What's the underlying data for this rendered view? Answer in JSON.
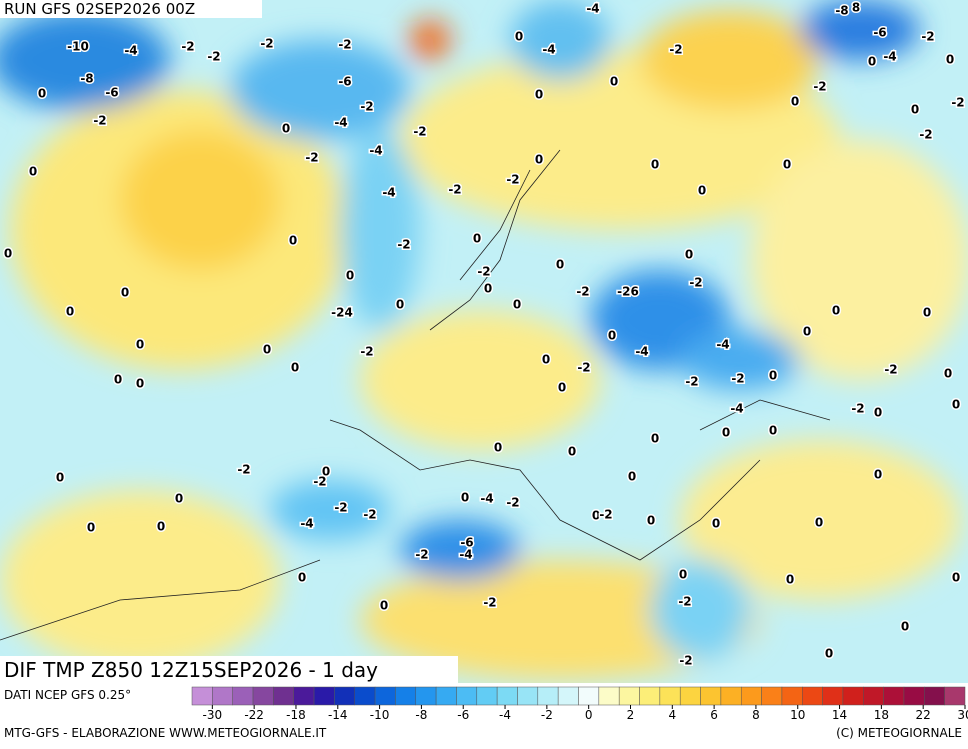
{
  "header": {
    "run": "RUN GFS 02SEP2026 00Z"
  },
  "map": {
    "title": "DIF TMP Z850 12Z15SEP2026 - 1 day",
    "labels": [
      -10,
      -4,
      -2,
      -2,
      -2,
      -2,
      0,
      -4,
      -4,
      -2,
      -8,
      8,
      -6,
      -2,
      -8,
      -6,
      0,
      -2,
      -6,
      -2,
      -4,
      0,
      -2,
      0,
      0,
      0,
      -2,
      0,
      -4,
      0,
      0,
      -2,
      -2,
      0,
      -2,
      -4,
      0,
      0,
      0,
      -4,
      -2,
      -2,
      0,
      0,
      -2,
      0,
      0,
      0,
      0,
      0,
      -2,
      0,
      -2,
      0,
      -2,
      -26,
      0,
      -24,
      0,
      0,
      0,
      0,
      0,
      0,
      -2,
      0,
      0,
      -4,
      -4,
      0,
      -2,
      0,
      0,
      0,
      0,
      -2,
      -2,
      0,
      -2,
      0,
      -2,
      0,
      0,
      -4,
      0,
      0,
      0,
      0,
      0,
      -2,
      0,
      -2,
      0,
      0,
      0,
      0,
      0,
      -4,
      -2,
      -2,
      -2,
      0,
      -2,
      0,
      0,
      0,
      -4,
      0,
      0,
      -6,
      -2,
      -4,
      0,
      0,
      0,
      0,
      -2,
      0,
      -2,
      0,
      0,
      -2
    ]
  },
  "legend": {
    "source": "DATI NCEP GFS 0.25°",
    "colors": [
      "#c58fd8",
      "#b077c8",
      "#9b60b8",
      "#86479f",
      "#6f3090",
      "#4b1a9a",
      "#2a1aa8",
      "#1230b8",
      "#0a4ccc",
      "#0d66dc",
      "#1580e8",
      "#2496ee",
      "#36aaf2",
      "#4cbcf4",
      "#62ccf4",
      "#7cdaf4",
      "#98e4f6",
      "#b6eef8",
      "#d4f6fa",
      "#f2fcfc",
      "#fcfcc8",
      "#fcf6a0",
      "#fcee78",
      "#fce258",
      "#fcd440",
      "#fcc430",
      "#fcb024",
      "#fc9a1c",
      "#fa8018",
      "#f46414",
      "#ec4814",
      "#e03018",
      "#d0201c",
      "#c01828",
      "#ac1038",
      "#980c44",
      "#84104c",
      "#a8386c"
    ],
    "ticks": [
      -30,
      -22,
      -18,
      -14,
      -10,
      -8,
      -6,
      -4,
      -2,
      0,
      2,
      4,
      6,
      8,
      10,
      14,
      18,
      22,
      30
    ]
  },
  "footer": {
    "credit": "MTG-GFS - ELABORAZIONE WWW.METEOGIORNALE.IT",
    "copyright": "(C) METEOGIORNALE"
  }
}
